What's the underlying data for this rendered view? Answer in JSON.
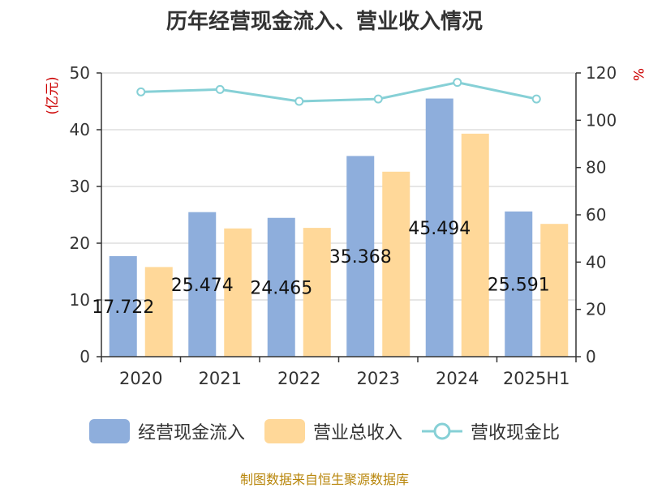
{
  "title": "历年经营现金流入、营业收入情况",
  "source_note": "制图数据来自恒生聚源数据库",
  "colors": {
    "cash_inflow": "#8eaedc",
    "revenue": "#ffd899",
    "ratio": "#86d0d6",
    "axis_unit": "#cc0000"
  },
  "chart_data": {
    "type": "bar",
    "title": "历年经营现金流入、营业收入情况",
    "categories": [
      "2020",
      "2021",
      "2022",
      "2023",
      "2024",
      "2025H1"
    ],
    "y_left": {
      "label": "(亿元)",
      "range": [
        0,
        50
      ],
      "ticks": [
        0,
        10,
        20,
        30,
        40,
        50
      ]
    },
    "y_right": {
      "label": "%",
      "range": [
        0,
        120
      ],
      "ticks": [
        0,
        20,
        40,
        60,
        80,
        100,
        120
      ]
    },
    "grid": true,
    "legend_position": "bottom",
    "series": [
      {
        "name": "经营现金流入",
        "type": "bar",
        "axis": "left",
        "values": [
          17.722,
          25.474,
          24.465,
          35.368,
          45.494,
          25.591
        ],
        "labels": [
          "17.722",
          "25.474",
          "24.465",
          "35.368",
          "45.494",
          "25.591"
        ]
      },
      {
        "name": "营业总收入",
        "type": "bar",
        "axis": "left",
        "values": [
          15.8,
          22.6,
          22.7,
          32.6,
          39.3,
          23.4
        ]
      },
      {
        "name": "营收现金比",
        "type": "line",
        "axis": "right",
        "values": [
          112,
          113,
          108,
          109,
          116,
          109
        ]
      }
    ]
  }
}
